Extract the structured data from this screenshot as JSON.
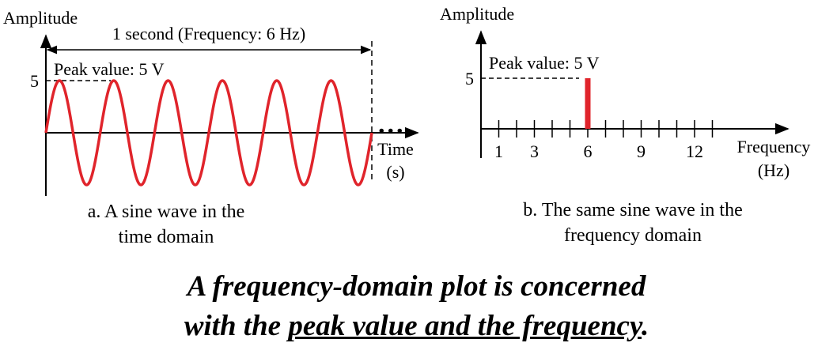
{
  "colors": {
    "signal": "#e0242b",
    "ink": "#000000"
  },
  "time_plot": {
    "y_label": "Amplitude",
    "period_label": "1 second (Frequency: 6 Hz)",
    "peak_label": "Peak value: 5 V",
    "y_tick": "5",
    "ellipsis": "...",
    "x_label_1": "Time",
    "x_label_2": "(s)",
    "caption_1": "a. A sine wave in the",
    "caption_2": "time domain"
  },
  "freq_plot": {
    "y_label": "Amplitude",
    "peak_label": "Peak value: 5 V",
    "y_tick": "5",
    "x_ticks": [
      "1",
      "3",
      "6",
      "9",
      "12"
    ],
    "x_label_1": "Frequency",
    "x_label_2": "(Hz)",
    "caption_1": "b. The same sine wave in the",
    "caption_2": "frequency domain"
  },
  "statement": {
    "line1": "A frequency-domain plot is concerned",
    "line2_pre": "with the ",
    "line2_ul": "peak value and the frequency",
    "line2_post": "."
  },
  "chart_data": [
    {
      "type": "line",
      "description_source": "time domain plot",
      "frequency_hz": 6,
      "amplitude": 5,
      "cycles_shown": 6,
      "x_range": [
        0,
        1
      ],
      "y_range": [
        -5,
        5
      ]
    },
    {
      "type": "bar",
      "categories": [
        "6"
      ],
      "values": [
        5
      ],
      "x_ticks": [
        1,
        3,
        6,
        9,
        12
      ]
    }
  ]
}
